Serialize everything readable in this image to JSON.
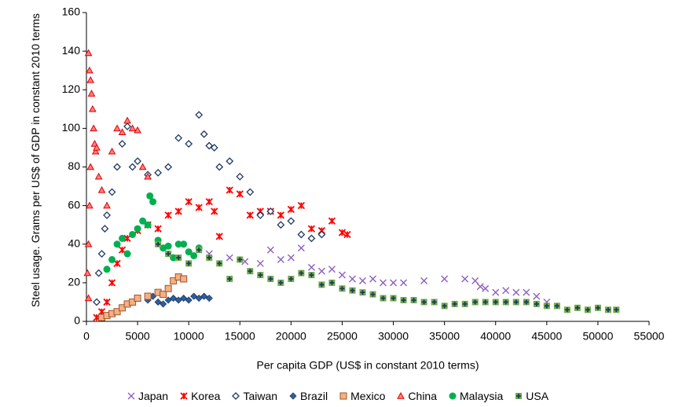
{
  "chart_data": {
    "type": "scatter",
    "x_label": "Per capita GDP (US$ in constant 2010 terms)",
    "y_label": "Steel usage. Grams per US$ of GDP in constant 2010 terms",
    "xlim": [
      0,
      55000
    ],
    "xticks": [
      0,
      5000,
      10000,
      15000,
      20000,
      25000,
      30000,
      35000,
      40000,
      45000,
      50000,
      55000
    ],
    "ylim": [
      0,
      160
    ],
    "yticks": [
      0,
      20,
      40,
      60,
      80,
      100,
      120,
      140,
      160
    ],
    "grid": false,
    "legend": "bottom",
    "series": [
      {
        "name": "Japan",
        "marker": "x",
        "color": "#8e5fbf",
        "x": [
          12000,
          14000,
          15500,
          17000,
          18000,
          19000,
          20000,
          21000,
          22000,
          23000,
          24000,
          25000,
          26000,
          27000,
          28000,
          29000,
          30000,
          31000,
          33000,
          35000,
          37000,
          38000,
          38500,
          39000,
          40000,
          41000,
          42000,
          43000,
          44000,
          45000
        ],
        "values": [
          35,
          33,
          31,
          30,
          37,
          32,
          33,
          38,
          28,
          26,
          27,
          24,
          22,
          21,
          22,
          20,
          20,
          20,
          21,
          22,
          22,
          21,
          18,
          17,
          15,
          16,
          15,
          15,
          13,
          10
        ]
      },
      {
        "name": "Korea",
        "marker": "star",
        "color": "#ff0000",
        "x": [
          1000,
          1500,
          2000,
          2500,
          3000,
          3500,
          4000,
          5000,
          6000,
          7000,
          8000,
          9000,
          10000,
          11000,
          12000,
          12500,
          13000,
          14000,
          15000,
          16000,
          17000,
          18000,
          19000,
          20000,
          21000,
          22000,
          23000,
          24000,
          25000,
          25500
        ],
        "values": [
          2,
          5,
          10,
          20,
          30,
          37,
          43,
          47,
          50,
          48,
          55,
          57,
          62,
          59,
          62,
          57,
          44,
          68,
          66,
          55,
          57,
          57,
          55,
          58,
          60,
          48,
          47,
          52,
          46,
          45
        ]
      },
      {
        "name": "Taiwan",
        "marker": "diamond-open",
        "color": "#1f3864",
        "x": [
          1000,
          1200,
          1500,
          1800,
          2000,
          2500,
          3000,
          3500,
          4000,
          4500,
          5000,
          6000,
          7000,
          8000,
          9000,
          10000,
          11000,
          11500,
          12000,
          12500,
          13000,
          14000,
          15000,
          16000,
          17000,
          18000,
          19000,
          20000,
          21000,
          22000,
          23000
        ],
        "values": [
          10,
          25,
          35,
          48,
          55,
          67,
          80,
          92,
          101,
          80,
          83,
          76,
          77,
          80,
          95,
          92,
          107,
          97,
          91,
          90,
          80,
          83,
          75,
          67,
          55,
          57,
          50,
          52,
          45,
          43,
          45
        ]
      },
      {
        "name": "Brazil",
        "marker": "diamond",
        "color": "#2e5f9e",
        "x": [
          6000,
          6500,
          7000,
          7500,
          8000,
          8500,
          9000,
          9500,
          10000,
          10500,
          11000,
          11500,
          12000
        ],
        "values": [
          11,
          13,
          10,
          9,
          11,
          12,
          11,
          12,
          11,
          13,
          12,
          13,
          12
        ]
      },
      {
        "name": "Mexico",
        "marker": "square",
        "color": "#f4b183",
        "x": [
          1500,
          2000,
          2500,
          3000,
          3500,
          4000,
          4500,
          5000,
          6000,
          7000,
          7500,
          8000,
          8500,
          9000,
          9500
        ],
        "values": [
          2,
          3,
          4,
          5,
          7,
          9,
          10,
          12,
          13,
          15,
          14,
          17,
          21,
          23,
          22
        ]
      },
      {
        "name": "China",
        "marker": "triangle",
        "color": "#ff8080",
        "x": [
          200,
          300,
          400,
          500,
          600,
          700,
          800,
          400,
          300,
          200,
          100,
          200,
          900,
          1000,
          1200,
          1500,
          2000,
          2500,
          3000,
          3500,
          4000,
          4500,
          5000,
          5500,
          6000
        ],
        "values": [
          139,
          130,
          125,
          118,
          110,
          100,
          92,
          80,
          60,
          40,
          25,
          12,
          88,
          90,
          75,
          68,
          60,
          88,
          100,
          98,
          104,
          100,
          99,
          80,
          75
        ]
      },
      {
        "name": "Malaysia",
        "marker": "circle",
        "color": "#00b050",
        "x": [
          2000,
          2500,
          3000,
          3500,
          4000,
          4500,
          5000,
          5500,
          6000,
          6200,
          6500,
          7000,
          7500,
          8000,
          8500,
          9000,
          9500,
          10000,
          10500,
          11000
        ],
        "values": [
          27,
          32,
          40,
          43,
          35,
          45,
          48,
          52,
          50,
          65,
          62,
          42,
          38,
          39,
          33,
          40,
          40,
          36,
          34,
          38
        ]
      },
      {
        "name": "USA",
        "marker": "square-plus",
        "color": "#70ad47",
        "x": [
          7000,
          8000,
          9000,
          10000,
          11000,
          12000,
          13000,
          14000,
          15000,
          16000,
          17000,
          18000,
          19000,
          20000,
          21000,
          22000,
          23000,
          24000,
          25000,
          26000,
          27000,
          28000,
          29000,
          30000,
          31000,
          32000,
          33000,
          34000,
          35000,
          36000,
          37000,
          38000,
          39000,
          40000,
          41000,
          42000,
          43000,
          44000,
          45000,
          46000,
          47000,
          48000,
          49000,
          50000,
          51000,
          51800
        ],
        "values": [
          40,
          35,
          33,
          30,
          37,
          33,
          30,
          22,
          32,
          26,
          24,
          22,
          20,
          22,
          25,
          24,
          19,
          20,
          17,
          16,
          15,
          14,
          12,
          12,
          11,
          11,
          10,
          10,
          8,
          9,
          9,
          10,
          10,
          10,
          10,
          10,
          10,
          9,
          8,
          8,
          6,
          7,
          6,
          7,
          6,
          6
        ]
      }
    ]
  }
}
